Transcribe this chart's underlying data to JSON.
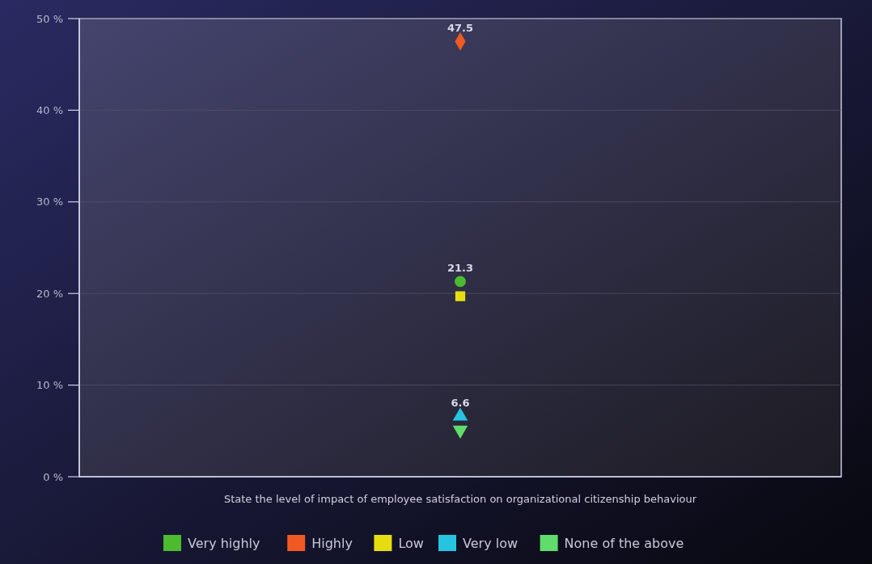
{
  "chart_data": {
    "type": "scatter",
    "xlabel": "State the level of impact of employee satisfaction on organizational citizenship behaviour",
    "categories": [
      null
    ],
    "ylim": [
      0,
      50
    ],
    "yticks": [
      {
        "value": 0,
        "label": "0 %"
      },
      {
        "value": 10,
        "label": "10 %"
      },
      {
        "value": 20,
        "label": "20 %"
      },
      {
        "value": 30,
        "label": "30 %"
      },
      {
        "value": 40,
        "label": "40 %"
      },
      {
        "value": 50,
        "label": "50 %"
      }
    ],
    "grid": "y",
    "legend": "bottom",
    "series": [
      {
        "name": "Very highly",
        "color": "#4cbb2f",
        "marker": "circle",
        "values": [
          21.3
        ],
        "value_labels": [
          "21.3"
        ]
      },
      {
        "name": "Highly",
        "color": "#f05a22",
        "marker": "diamond",
        "values": [
          47.5
        ],
        "value_labels": [
          "47.5"
        ]
      },
      {
        "name": "Low",
        "color": "#e6dd10",
        "marker": "square",
        "values": [
          19.7
        ],
        "value_labels": [
          null
        ]
      },
      {
        "name": "Very low",
        "color": "#27c4e0",
        "marker": "triangle",
        "values": [
          6.6
        ],
        "value_labels": [
          "6.6"
        ]
      },
      {
        "name": "None of the above",
        "color": "#5fdc6a",
        "marker": "triangle-down",
        "values": [
          5.1
        ],
        "value_labels": [
          null
        ]
      }
    ]
  }
}
